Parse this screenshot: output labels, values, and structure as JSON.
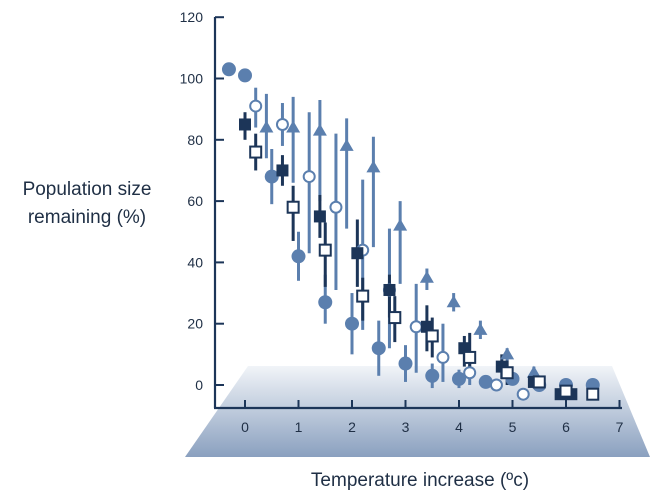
{
  "chart_data": {
    "type": "scatter",
    "title": "",
    "xlabel": "Temperature increase (ºc)",
    "ylabel_lines": [
      "Population size",
      "remaining (%)"
    ],
    "xlim": [
      -0.5,
      7
    ],
    "ylim": [
      0,
      120
    ],
    "x_ticks": [
      "0",
      "1",
      "2",
      "3",
      "4",
      "5",
      "6",
      "7"
    ],
    "y_ticks": [
      "0",
      "20",
      "40",
      "60",
      "80",
      "100",
      "120"
    ],
    "grid": false,
    "colors": {
      "filled_circle": "#5b7fae",
      "triangle": "#5b7fae",
      "filled_square": "#1c3558",
      "open_marker_stroke": "#1c3558",
      "open_circle_stroke": "#5b7fae",
      "axis": "#1c3558",
      "floor_light": "#eef2f7",
      "floor_dark": "#7f97b8"
    },
    "series": [
      {
        "marker": "filled-circle",
        "points": [
          {
            "x": -0.3,
            "y": 103
          },
          {
            "x": 0.0,
            "y": 101
          },
          {
            "x": 0.5,
            "y": 68,
            "lo": 59,
            "hi": 77
          },
          {
            "x": 1.0,
            "y": 42,
            "lo": 34,
            "hi": 50
          },
          {
            "x": 1.5,
            "y": 27,
            "lo": 20,
            "hi": 36
          },
          {
            "x": 2.0,
            "y": 20,
            "lo": 10,
            "hi": 30
          },
          {
            "x": 2.5,
            "y": 12,
            "lo": 3,
            "hi": 21
          },
          {
            "x": 3.0,
            "y": 7,
            "lo": 1,
            "hi": 13
          },
          {
            "x": 3.5,
            "y": 3,
            "lo": -1,
            "hi": 7
          },
          {
            "x": 4.0,
            "y": 2,
            "lo": -1,
            "hi": 5
          },
          {
            "x": 4.5,
            "y": 1
          },
          {
            "x": 5.0,
            "y": 2
          },
          {
            "x": 5.5,
            "y": 0
          },
          {
            "x": 6.0,
            "y": 0
          },
          {
            "x": 6.5,
            "y": 0
          }
        ]
      },
      {
        "marker": "open-circle",
        "points": [
          {
            "x": 0.2,
            "y": 91,
            "lo": 84,
            "hi": 97
          },
          {
            "x": 0.7,
            "y": 85,
            "lo": 78,
            "hi": 92
          },
          {
            "x": 1.2,
            "y": 68,
            "lo": 43,
            "hi": 89
          },
          {
            "x": 1.7,
            "y": 58,
            "lo": 31,
            "hi": 82
          },
          {
            "x": 2.2,
            "y": 44,
            "lo": 18,
            "hi": 67
          },
          {
            "x": 2.7,
            "y": 31,
            "lo": 12,
            "hi": 51
          },
          {
            "x": 3.2,
            "y": 19,
            "lo": 4,
            "hi": 33
          },
          {
            "x": 3.7,
            "y": 9,
            "lo": 1,
            "hi": 20
          },
          {
            "x": 4.2,
            "y": 4,
            "lo": 0,
            "hi": 9
          },
          {
            "x": 4.7,
            "y": 0
          },
          {
            "x": 5.2,
            "y": -3
          }
        ]
      },
      {
        "marker": "triangle",
        "points": [
          {
            "x": 0.4,
            "y": 84,
            "lo": 74,
            "hi": 95
          },
          {
            "x": 0.9,
            "y": 84,
            "lo": 66,
            "hi": 94
          },
          {
            "x": 1.4,
            "y": 83,
            "lo": 60,
            "hi": 93
          },
          {
            "x": 1.9,
            "y": 78,
            "lo": 51,
            "hi": 87
          },
          {
            "x": 2.4,
            "y": 71,
            "lo": 45,
            "hi": 81
          },
          {
            "x": 2.9,
            "y": 52,
            "lo": 33,
            "hi": 60
          },
          {
            "x": 3.4,
            "y": 35,
            "lo": 31,
            "hi": 38
          },
          {
            "x": 3.9,
            "y": 27,
            "lo": 24,
            "hi": 30
          },
          {
            "x": 4.4,
            "y": 18,
            "lo": 15,
            "hi": 21
          },
          {
            "x": 4.9,
            "y": 10,
            "lo": 8,
            "hi": 12
          },
          {
            "x": 5.4,
            "y": 4,
            "lo": 2,
            "hi": 6
          }
        ]
      },
      {
        "marker": "filled-square",
        "points": [
          {
            "x": 0.0,
            "y": 85,
            "lo": 80,
            "hi": 89
          },
          {
            "x": 0.7,
            "y": 70,
            "lo": 65,
            "hi": 75
          },
          {
            "x": 1.4,
            "y": 55,
            "lo": 48,
            "hi": 62
          },
          {
            "x": 2.1,
            "y": 43,
            "lo": 32,
            "hi": 54
          },
          {
            "x": 2.7,
            "y": 31,
            "lo": 22,
            "hi": 36
          },
          {
            "x": 3.4,
            "y": 19,
            "lo": 11,
            "hi": 26
          },
          {
            "x": 4.1,
            "y": 12,
            "lo": 6,
            "hi": 16
          },
          {
            "x": 4.8,
            "y": 6,
            "lo": 2,
            "hi": 10
          },
          {
            "x": 5.4,
            "y": 1
          },
          {
            "x": 5.9,
            "y": -3
          },
          {
            "x": 6.1,
            "y": -3
          }
        ]
      },
      {
        "marker": "open-square",
        "points": [
          {
            "x": 0.2,
            "y": 76,
            "lo": 70,
            "hi": 82
          },
          {
            "x": 0.9,
            "y": 58,
            "lo": 47,
            "hi": 65
          },
          {
            "x": 1.5,
            "y": 44,
            "lo": 32,
            "hi": 53
          },
          {
            "x": 2.2,
            "y": 29,
            "lo": 21,
            "hi": 35
          },
          {
            "x": 2.8,
            "y": 22,
            "lo": 14,
            "hi": 29
          },
          {
            "x": 3.5,
            "y": 16,
            "lo": 9,
            "hi": 22
          },
          {
            "x": 4.2,
            "y": 9,
            "lo": 2,
            "hi": 17
          },
          {
            "x": 4.9,
            "y": 4,
            "lo": 0,
            "hi": 8
          },
          {
            "x": 5.5,
            "y": 1
          },
          {
            "x": 6.0,
            "y": -2
          },
          {
            "x": 6.5,
            "y": -3
          }
        ]
      }
    ]
  }
}
